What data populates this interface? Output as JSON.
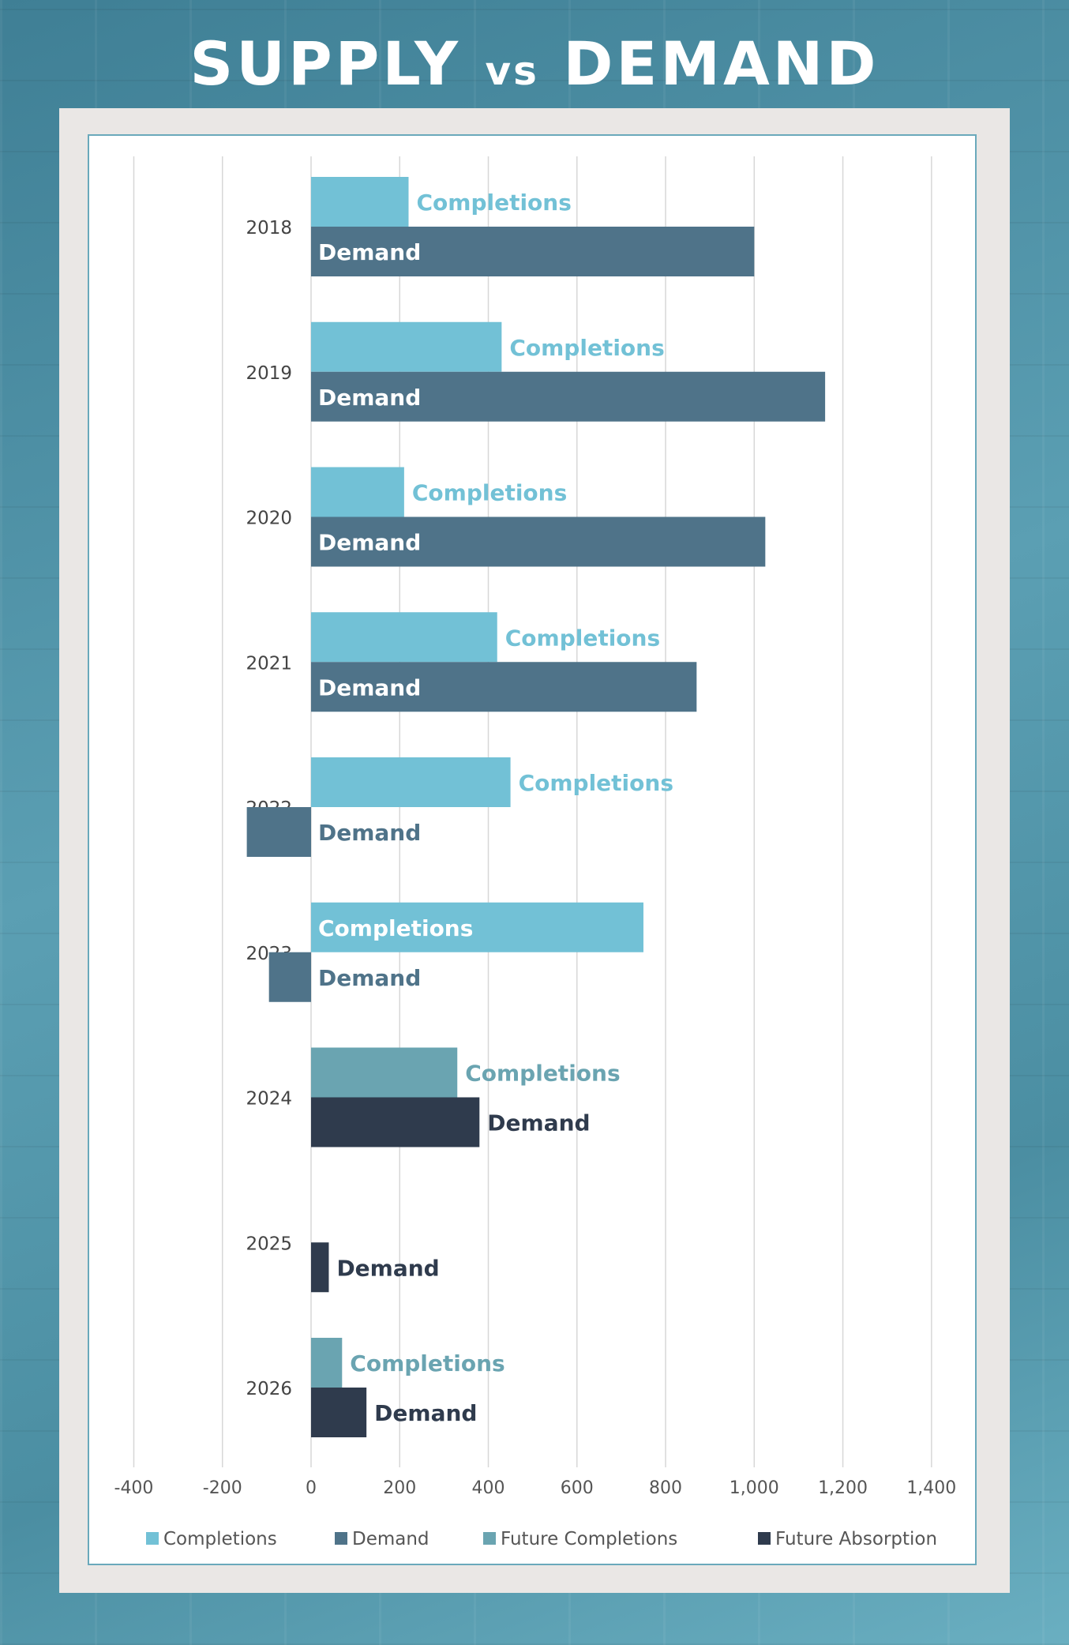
{
  "title": {
    "main1": "SUPPLY",
    "vs": "vs",
    "main2": "DEMAND"
  },
  "colors": {
    "completions": "#72c1d6",
    "demand": "#4f7389",
    "future_completions": "#6aa4b1",
    "future_absorption": "#2f3b4d",
    "grid": "#d7d7d7",
    "tick_text": "#555555"
  },
  "chart_data": {
    "type": "bar",
    "orientation": "horizontal",
    "categories": [
      "2018",
      "2019",
      "2020",
      "2021",
      "2022",
      "2023",
      "2024",
      "2025",
      "2026"
    ],
    "series": [
      {
        "name": "Completions",
        "values": [
          220,
          430,
          210,
          420,
          450,
          750,
          null,
          null,
          null
        ]
      },
      {
        "name": "Demand",
        "values": [
          1000,
          1160,
          1025,
          870,
          -145,
          -95,
          null,
          null,
          null
        ]
      },
      {
        "name": "Future Completions",
        "values": [
          null,
          null,
          null,
          null,
          null,
          null,
          330,
          null,
          70
        ]
      },
      {
        "name": "Future Absorption",
        "values": [
          null,
          null,
          null,
          null,
          null,
          null,
          380,
          40,
          125
        ]
      }
    ],
    "bar_labels": {
      "completions": "Completions",
      "demand": "Demand"
    },
    "xlim": [
      -400,
      1400
    ],
    "xticks": [
      -400,
      -200,
      0,
      200,
      400,
      600,
      800,
      1000,
      1200,
      1400
    ],
    "xtick_labels": [
      "-400",
      "-200",
      "0",
      "200",
      "400",
      "600",
      "800",
      "1,000",
      "1,200",
      "1,400"
    ],
    "grid": true,
    "legend": [
      "Completions",
      "Demand",
      "Future Completions",
      "Future Absorption"
    ],
    "legend_position": "bottom"
  }
}
